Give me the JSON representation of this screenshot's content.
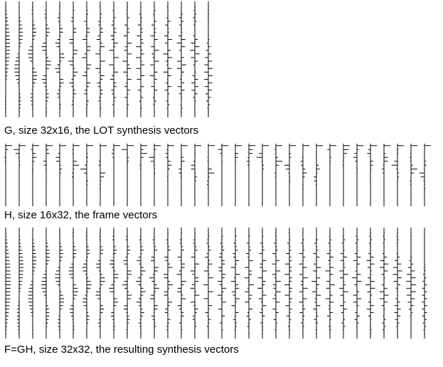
{
  "figure": {
    "captions": [
      "G, size 32x16, the LOT synthesis vectors",
      "H, size 16x32, the frame vectors",
      "F=GH, size 32x32, the resulting synthesis vectors"
    ]
  }
}
